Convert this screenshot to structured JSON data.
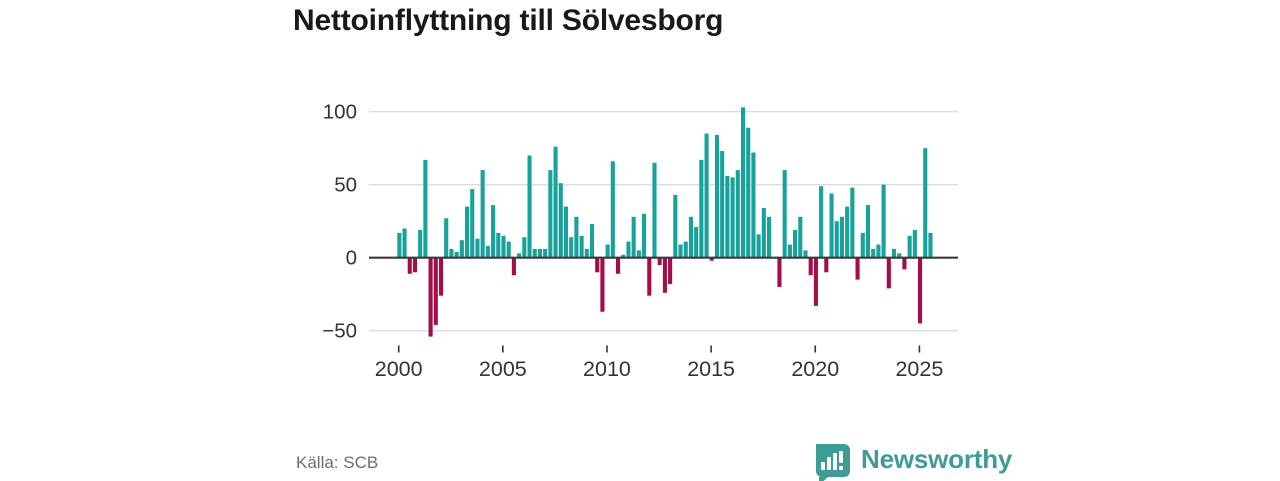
{
  "header": {
    "title": "Nettoinflyttning till Sölvesborg"
  },
  "footer": {
    "source_label": "Källa: SCB",
    "brand": {
      "name": "Newsworthy",
      "icon": "newsworthy-speech-bubble-bar-chart-icon",
      "color": "#3d9d96"
    }
  },
  "chart_data": {
    "type": "bar",
    "title": "Nettoinflyttning till Sölvesborg",
    "frequency": "quarterly",
    "start_quarter": "2000-Q1",
    "end_quarter": "2025-Q3",
    "values": [
      17,
      20,
      -11,
      -10,
      19,
      67,
      -54,
      -46,
      -26,
      27,
      6,
      4,
      12,
      35,
      47,
      13,
      60,
      8,
      36,
      17,
      15,
      11,
      -12,
      3,
      14,
      70,
      6,
      6,
      6,
      60,
      76,
      51,
      35,
      14,
      28,
      15,
      6,
      23,
      -10,
      -37,
      9,
      66,
      -11,
      2,
      11,
      28,
      5,
      30,
      -26,
      65,
      -5,
      -24,
      -18,
      43,
      9,
      11,
      28,
      21,
      67,
      85,
      -2,
      84,
      73,
      56,
      55,
      60,
      103,
      89,
      72,
      16,
      34,
      28,
      0,
      -20,
      60,
      9,
      19,
      28,
      5,
      -12,
      -33,
      49,
      -10,
      44,
      25,
      28,
      35,
      48,
      -15,
      17,
      36,
      6,
      9,
      50,
      -21,
      6,
      3,
      -8,
      15,
      19,
      -45,
      75,
      17
    ],
    "x_tick_years": [
      2000,
      2005,
      2010,
      2015,
      2020,
      2025
    ],
    "y_gridlines": [
      100,
      50,
      0,
      -50
    ],
    "ylim": [
      -60,
      110
    ],
    "grid_on": true,
    "legend": "none",
    "positive_color": "#17a29b",
    "negative_color": "#a50d49",
    "axis_line_color": "#3a3a3a",
    "gridline_color": "#dcdcdc",
    "tick_label_color": "#333333",
    "xlabel": "",
    "ylabel": ""
  }
}
